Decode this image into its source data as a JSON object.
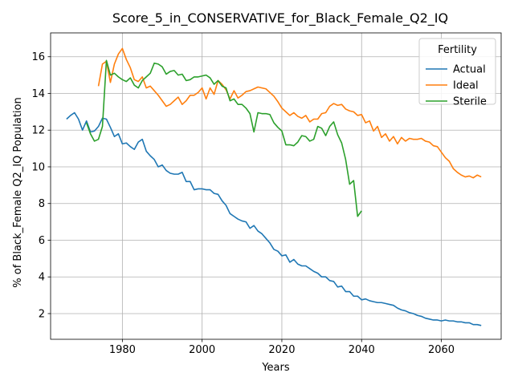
{
  "chart_data": {
    "type": "line",
    "title": "Score_5_in_CONSERVATIVE_for_Black_Female_Q2_IQ",
    "xlabel": "Years",
    "ylabel": "% of Black_Female Q2_IQ Population",
    "xlim": [
      1962,
      2075
    ],
    "ylim": [
      0.6,
      17.3
    ],
    "xticks": [
      1980,
      2000,
      2020,
      2040,
      2060
    ],
    "yticks": [
      2,
      4,
      6,
      8,
      10,
      12,
      14,
      16
    ],
    "grid": true,
    "legend": {
      "title": "Fertility",
      "placement": "top-right"
    },
    "series": [
      {
        "name": "Actual",
        "color": "#1f77b4",
        "x": [
          1966,
          1967,
          1968,
          1969,
          1970,
          1971,
          1972,
          1973,
          1974,
          1975,
          1976,
          1977,
          1978,
          1979,
          1980,
          1981,
          1982,
          1983,
          1984,
          1985,
          1986,
          1987,
          1988,
          1989,
          1990,
          1991,
          1992,
          1993,
          1994,
          1995,
          1996,
          1997,
          1998,
          1999,
          2000,
          2001,
          2002,
          2003,
          2004,
          2005,
          2006,
          2007,
          2008,
          2009,
          2010,
          2011,
          2012,
          2013,
          2014,
          2015,
          2016,
          2017,
          2018,
          2019,
          2020,
          2021,
          2022,
          2023,
          2024,
          2025,
          2026,
          2027,
          2028,
          2029,
          2030,
          2031,
          2032,
          2033,
          2034,
          2035,
          2036,
          2037,
          2038,
          2039,
          2040,
          2041,
          2042,
          2043,
          2044,
          2045,
          2046,
          2047,
          2048,
          2049,
          2050,
          2051,
          2052,
          2053,
          2054,
          2055,
          2056,
          2057,
          2058,
          2059,
          2060,
          2061,
          2062,
          2063,
          2064,
          2065,
          2066,
          2067,
          2068,
          2069,
          2070
        ],
        "values": [
          12.6,
          12.8,
          12.95,
          12.6,
          12.0,
          12.5,
          11.9,
          11.95,
          12.2,
          12.65,
          12.6,
          12.15,
          11.65,
          11.8,
          11.25,
          11.3,
          11.1,
          10.95,
          11.35,
          11.5,
          10.85,
          10.6,
          10.4,
          10.0,
          10.1,
          9.8,
          9.65,
          9.6,
          9.6,
          9.7,
          9.2,
          9.2,
          8.75,
          8.8,
          8.8,
          8.75,
          8.75,
          8.55,
          8.5,
          8.15,
          7.9,
          7.45,
          7.3,
          7.15,
          7.05,
          7.0,
          6.65,
          6.8,
          6.5,
          6.35,
          6.1,
          5.85,
          5.5,
          5.4,
          5.15,
          5.2,
          4.8,
          4.95,
          4.7,
          4.6,
          4.6,
          4.45,
          4.3,
          4.2,
          4.0,
          4.0,
          3.8,
          3.75,
          3.45,
          3.5,
          3.2,
          3.2,
          2.95,
          2.95,
          2.75,
          2.8,
          2.7,
          2.65,
          2.6,
          2.6,
          2.55,
          2.5,
          2.45,
          2.3,
          2.2,
          2.15,
          2.05,
          2.0,
          1.9,
          1.85,
          1.75,
          1.7,
          1.65,
          1.65,
          1.6,
          1.65,
          1.6,
          1.6,
          1.55,
          1.55,
          1.5,
          1.5,
          1.4,
          1.4,
          1.35
        ]
      },
      {
        "name": "Ideal",
        "color": "#ff7f0e",
        "x": [
          1974,
          1975,
          1976,
          1977,
          1978,
          1979,
          1980,
          1981,
          1982,
          1983,
          1984,
          1985,
          1986,
          1987,
          1988,
          1989,
          1990,
          1991,
          1992,
          1993,
          1994,
          1995,
          1996,
          1997,
          1998,
          1999,
          2000,
          2001,
          2002,
          2003,
          2004,
          2005,
          2006,
          2007,
          2008,
          2009,
          2010,
          2011,
          2012,
          2013,
          2014,
          2015,
          2016,
          2017,
          2018,
          2019,
          2020,
          2021,
          2022,
          2023,
          2024,
          2025,
          2026,
          2027,
          2028,
          2029,
          2030,
          2031,
          2032,
          2033,
          2034,
          2035,
          2036,
          2037,
          2038,
          2039,
          2040,
          2041,
          2042,
          2043,
          2044,
          2045,
          2046,
          2047,
          2048,
          2049,
          2050,
          2051,
          2052,
          2053,
          2054,
          2055,
          2056,
          2057,
          2058,
          2059,
          2060,
          2061,
          2062,
          2063,
          2064,
          2065,
          2066,
          2067,
          2068,
          2069,
          2070
        ],
        "values": [
          14.4,
          15.6,
          15.75,
          14.6,
          15.6,
          16.15,
          16.45,
          15.85,
          15.4,
          14.75,
          14.65,
          14.9,
          14.3,
          14.4,
          14.15,
          13.9,
          13.6,
          13.3,
          13.4,
          13.6,
          13.8,
          13.4,
          13.6,
          13.9,
          13.9,
          14.05,
          14.3,
          13.7,
          14.3,
          13.95,
          14.7,
          14.5,
          14.2,
          13.7,
          14.15,
          13.75,
          13.9,
          14.1,
          14.15,
          14.25,
          14.35,
          14.3,
          14.25,
          14.05,
          13.85,
          13.55,
          13.2,
          13.0,
          12.8,
          12.95,
          12.75,
          12.65,
          12.8,
          12.45,
          12.6,
          12.6,
          12.9,
          12.95,
          13.3,
          13.45,
          13.35,
          13.4,
          13.15,
          13.05,
          13.0,
          12.8,
          12.85,
          12.4,
          12.5,
          11.95,
          12.2,
          11.6,
          11.8,
          11.4,
          11.65,
          11.25,
          11.6,
          11.4,
          11.55,
          11.5,
          11.5,
          11.55,
          11.4,
          11.35,
          11.15,
          11.1,
          10.8,
          10.5,
          10.3,
          9.9,
          9.7,
          9.55,
          9.45,
          9.5,
          9.4,
          9.55,
          9.45
        ]
      },
      {
        "name": "Sterile",
        "color": "#2ca02c",
        "x": [
          1971,
          1972,
          1973,
          1974,
          1975,
          1976,
          1977,
          1978,
          1979,
          1980,
          1981,
          1982,
          1983,
          1984,
          1985,
          1986,
          1987,
          1988,
          1989,
          1990,
          1991,
          1992,
          1993,
          1994,
          1995,
          1996,
          1997,
          1998,
          1999,
          2000,
          2001,
          2002,
          2003,
          2004,
          2005,
          2006,
          2007,
          2008,
          2009,
          2010,
          2011,
          2012,
          2013,
          2014,
          2015,
          2016,
          2017,
          2018,
          2019,
          2020,
          2021,
          2022,
          2023,
          2024,
          2025,
          2026,
          2027,
          2028,
          2029,
          2030,
          2031,
          2032,
          2033,
          2034,
          2035,
          2036,
          2037,
          2038,
          2039,
          2040
        ],
        "values": [
          12.4,
          11.8,
          11.4,
          11.5,
          12.2,
          15.8,
          15.0,
          15.1,
          14.9,
          14.75,
          14.65,
          14.85,
          14.45,
          14.3,
          14.7,
          14.9,
          15.1,
          15.65,
          15.6,
          15.45,
          15.05,
          15.2,
          15.25,
          15.0,
          15.05,
          14.7,
          14.75,
          14.9,
          14.9,
          14.95,
          15.0,
          14.85,
          14.5,
          14.7,
          14.4,
          14.3,
          13.6,
          13.7,
          13.4,
          13.4,
          13.2,
          12.9,
          11.9,
          12.95,
          12.9,
          12.9,
          12.85,
          12.4,
          12.15,
          11.95,
          11.2,
          11.2,
          11.15,
          11.35,
          11.7,
          11.65,
          11.4,
          11.5,
          12.2,
          12.1,
          11.7,
          12.2,
          12.45,
          11.75,
          11.3,
          10.4,
          9.05,
          9.25,
          7.3,
          7.6
        ]
      }
    ]
  }
}
